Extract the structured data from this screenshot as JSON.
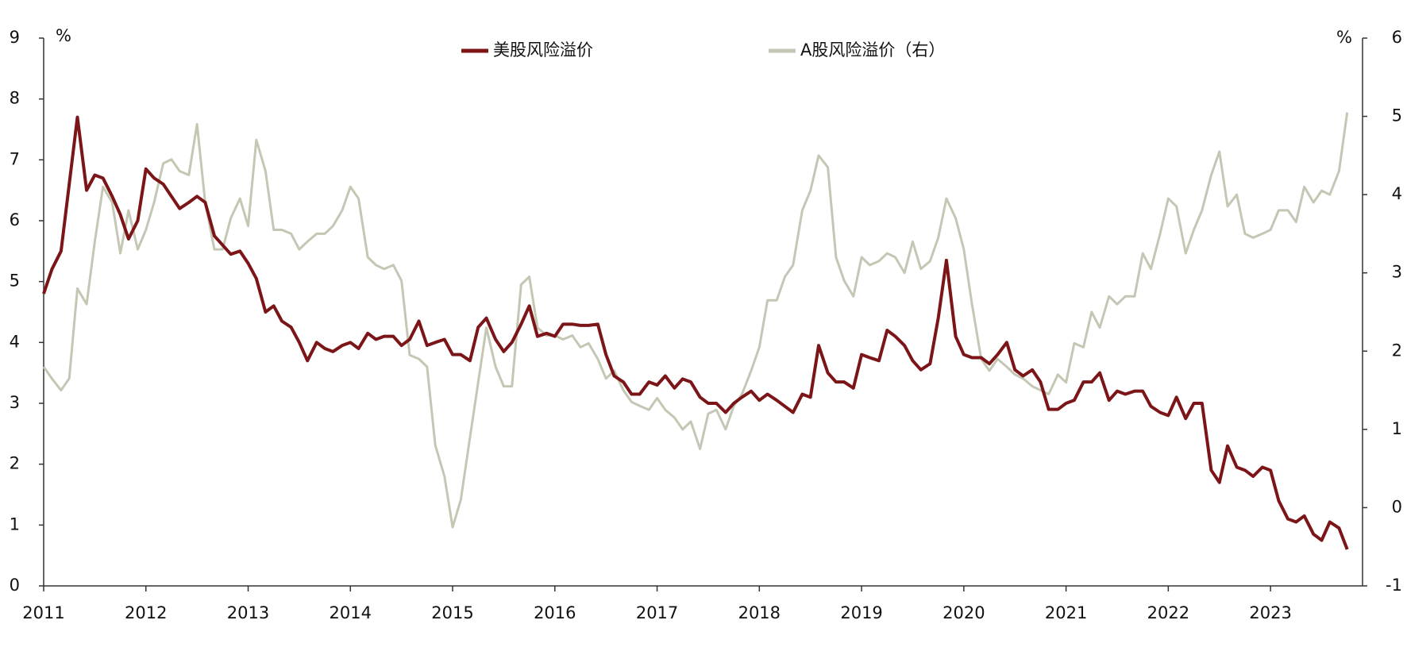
{
  "chart_data": {
    "type": "line",
    "ylabel": "%",
    "y2label": "%",
    "xlim": [
      2011,
      2023.9
    ],
    "xticks": [
      2011,
      2012,
      2013,
      2014,
      2015,
      2016,
      2017,
      2018,
      2019,
      2020,
      2021,
      2022,
      2023
    ],
    "ylim": [
      0,
      9
    ],
    "yticks": [
      0,
      1,
      2,
      3,
      4,
      5,
      6,
      7,
      8,
      9
    ],
    "y2lim": [
      -1,
      6
    ],
    "y2ticks": [
      -1,
      0,
      1,
      2,
      3,
      4,
      5,
      6
    ],
    "grid": false,
    "legend": "top",
    "x": [
      2011,
      2011.08,
      2011.17,
      2011.25,
      2011.33,
      2011.42,
      2011.5,
      2011.58,
      2011.67,
      2011.75,
      2011.83,
      2011.92,
      2012,
      2012.08,
      2012.17,
      2012.25,
      2012.33,
      2012.42,
      2012.5,
      2012.58,
      2012.67,
      2012.75,
      2012.83,
      2012.92,
      2013,
      2013.08,
      2013.17,
      2013.25,
      2013.33,
      2013.42,
      2013.5,
      2013.58,
      2013.67,
      2013.75,
      2013.83,
      2013.92,
      2014,
      2014.08,
      2014.17,
      2014.25,
      2014.33,
      2014.42,
      2014.5,
      2014.58,
      2014.67,
      2014.75,
      2014.83,
      2014.92,
      2015,
      2015.08,
      2015.17,
      2015.25,
      2015.33,
      2015.42,
      2015.5,
      2015.58,
      2015.67,
      2015.75,
      2015.83,
      2015.92,
      2016,
      2016.08,
      2016.17,
      2016.25,
      2016.33,
      2016.42,
      2016.5,
      2016.58,
      2016.67,
      2016.75,
      2016.83,
      2016.92,
      2017,
      2017.08,
      2017.17,
      2017.25,
      2017.33,
      2017.42,
      2017.5,
      2017.58,
      2017.67,
      2017.75,
      2017.83,
      2017.92,
      2018,
      2018.08,
      2018.17,
      2018.25,
      2018.33,
      2018.42,
      2018.5,
      2018.58,
      2018.67,
      2018.75,
      2018.83,
      2018.92,
      2019,
      2019.08,
      2019.17,
      2019.25,
      2019.33,
      2019.42,
      2019.5,
      2019.58,
      2019.67,
      2019.75,
      2019.83,
      2019.92,
      2020,
      2020.08,
      2020.17,
      2020.25,
      2020.33,
      2020.42,
      2020.5,
      2020.58,
      2020.67,
      2020.75,
      2020.83,
      2020.92,
      2021,
      2021.08,
      2021.17,
      2021.25,
      2021.33,
      2021.42,
      2021.5,
      2021.58,
      2021.67,
      2021.75,
      2021.83,
      2021.92,
      2022,
      2022.08,
      2022.17,
      2022.25,
      2022.33,
      2022.42,
      2022.5,
      2022.58,
      2022.67,
      2022.75,
      2022.83,
      2022.92,
      2023,
      2023.08,
      2023.17,
      2023.25,
      2023.33,
      2023.42,
      2023.5,
      2023.58,
      2023.67,
      2023.75
    ],
    "series": [
      {
        "name": "美股风险溢价",
        "color": "#7b1518",
        "values": [
          4.8,
          5.2,
          5.5,
          6.6,
          7.7,
          6.5,
          6.75,
          6.7,
          6.4,
          6.1,
          5.7,
          6.0,
          6.85,
          6.7,
          6.6,
          6.4,
          6.2,
          6.3,
          6.4,
          6.3,
          5.75,
          5.6,
          5.45,
          5.5,
          5.3,
          5.05,
          4.5,
          4.6,
          4.35,
          4.25,
          4.0,
          3.7,
          4.0,
          3.9,
          3.85,
          3.95,
          4.0,
          3.9,
          4.15,
          4.05,
          4.1,
          4.1,
          3.95,
          4.05,
          4.35,
          3.95,
          4.0,
          4.05,
          3.8,
          3.8,
          3.7,
          4.25,
          4.4,
          4.05,
          3.85,
          4.0,
          4.3,
          4.6,
          4.1,
          4.15,
          4.1,
          4.3,
          4.3,
          4.28,
          4.28,
          4.3,
          3.8,
          3.45,
          3.35,
          3.15,
          3.15,
          3.35,
          3.3,
          3.45,
          3.25,
          3.4,
          3.35,
          3.1,
          3.0,
          3.0,
          2.85,
          3.0,
          3.1,
          3.2,
          3.05,
          3.15,
          3.05,
          2.95,
          2.85,
          3.15,
          3.1,
          3.95,
          3.5,
          3.35,
          3.35,
          3.25,
          3.8,
          3.75,
          3.7,
          4.2,
          4.1,
          3.95,
          3.7,
          3.55,
          3.65,
          4.4,
          5.35,
          4.1,
          3.8,
          3.75,
          3.75,
          3.65,
          3.8,
          4.0,
          3.55,
          3.45,
          3.55,
          3.35,
          2.9,
          2.9,
          3.0,
          3.05,
          3.35,
          3.35,
          3.5,
          3.05,
          3.2,
          3.15,
          3.2,
          3.2,
          2.95,
          2.85,
          2.8,
          3.1,
          2.75,
          3.0,
          3.0,
          1.9,
          1.7,
          2.3,
          1.95,
          1.9,
          1.8,
          1.95,
          1.9,
          1.4,
          1.1,
          1.05,
          1.15,
          0.85,
          0.75,
          1.05,
          0.95,
          0.6
        ]
      },
      {
        "name": "A股风险溢价（右）",
        "color": "#c4c7b3",
        "axis": "y2",
        "values": [
          1.8,
          1.65,
          1.5,
          1.65,
          2.8,
          2.6,
          3.4,
          4.1,
          3.9,
          3.25,
          3.8,
          3.3,
          3.55,
          3.9,
          4.4,
          4.45,
          4.3,
          4.25,
          4.9,
          3.9,
          3.3,
          3.3,
          3.7,
          3.95,
          3.6,
          4.7,
          4.3,
          3.55,
          3.55,
          3.5,
          3.3,
          3.4,
          3.5,
          3.5,
          3.6,
          3.8,
          4.1,
          3.95,
          3.2,
          3.1,
          3.05,
          3.1,
          2.9,
          1.95,
          1.9,
          1.8,
          0.8,
          0.4,
          -0.25,
          0.1,
          0.9,
          1.6,
          2.3,
          1.8,
          1.55,
          1.55,
          2.85,
          2.95,
          2.3,
          2.2,
          2.2,
          2.15,
          2.2,
          2.05,
          2.1,
          1.9,
          1.65,
          1.75,
          1.5,
          1.35,
          1.3,
          1.25,
          1.4,
          1.25,
          1.15,
          1.0,
          1.1,
          0.75,
          1.2,
          1.25,
          1.0,
          1.3,
          1.45,
          1.75,
          2.05,
          2.65,
          2.65,
          2.95,
          3.1,
          3.8,
          4.05,
          4.5,
          4.35,
          3.2,
          2.9,
          2.7,
          3.2,
          3.1,
          3.15,
          3.25,
          3.2,
          3.0,
          3.4,
          3.05,
          3.15,
          3.45,
          3.95,
          3.7,
          3.3,
          2.6,
          1.9,
          1.75,
          1.9,
          1.8,
          1.7,
          1.65,
          1.55,
          1.5,
          1.45,
          1.7,
          1.6,
          2.1,
          2.05,
          2.5,
          2.3,
          2.7,
          2.6,
          2.7,
          2.7,
          3.25,
          3.05,
          3.5,
          3.95,
          3.85,
          3.25,
          3.55,
          3.8,
          4.25,
          4.55,
          3.85,
          4.0,
          3.5,
          3.45,
          3.5,
          3.55,
          3.8,
          3.8,
          3.65,
          4.1,
          3.9,
          4.05,
          4.0,
          4.3,
          5.05
        ]
      }
    ]
  }
}
